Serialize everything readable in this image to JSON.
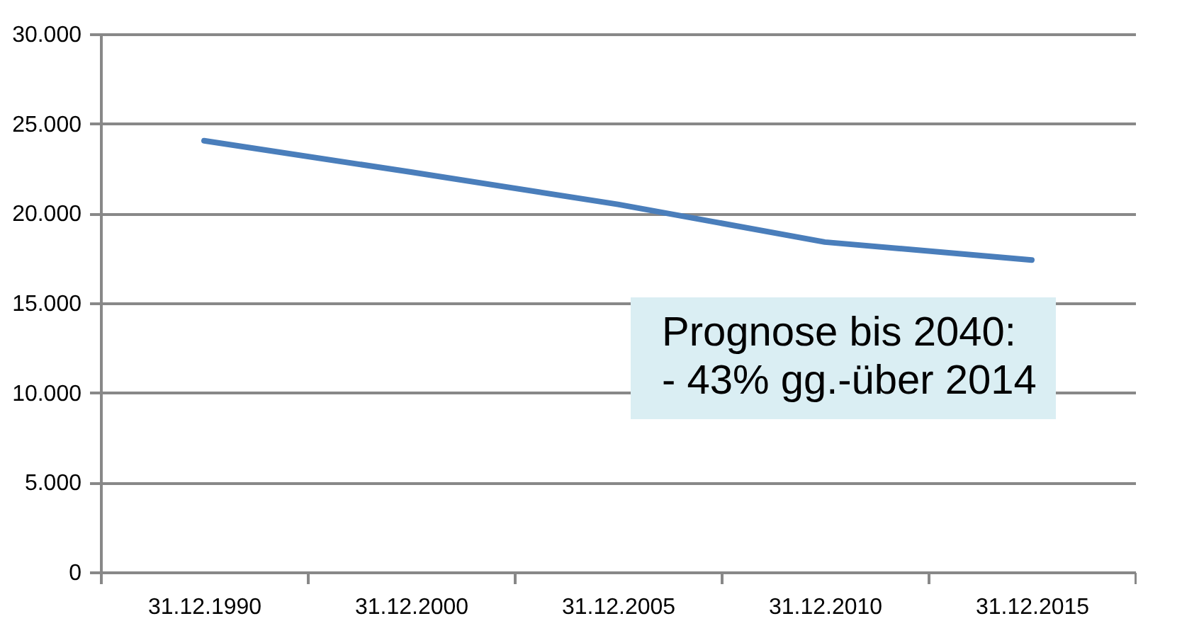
{
  "chart_data": {
    "type": "line",
    "categories": [
      "31.12.1990",
      "31.12.2000",
      "31.12.2005",
      "31.12.2010",
      "31.12.2015"
    ],
    "series": [
      {
        "color": "#4a7ebb",
        "values": [
          24050,
          22300,
          20500,
          18400,
          17400
        ]
      }
    ],
    "ylim": [
      0,
      30000
    ],
    "yticks": [
      {
        "value": 0,
        "label": "0"
      },
      {
        "value": 5000,
        "label": "5.000"
      },
      {
        "value": 10000,
        "label": "10.000"
      },
      {
        "value": 15000,
        "label": "15.000"
      },
      {
        "value": 20000,
        "label": "20.000"
      },
      {
        "value": 25000,
        "label": "25.000"
      },
      {
        "value": 30000,
        "label": "30.000"
      }
    ],
    "grid": "y",
    "marker": "none",
    "line_style": "solid",
    "annotations": [
      "Prognose bis 2040:",
      "- 43% gg.-über 2014"
    ]
  }
}
